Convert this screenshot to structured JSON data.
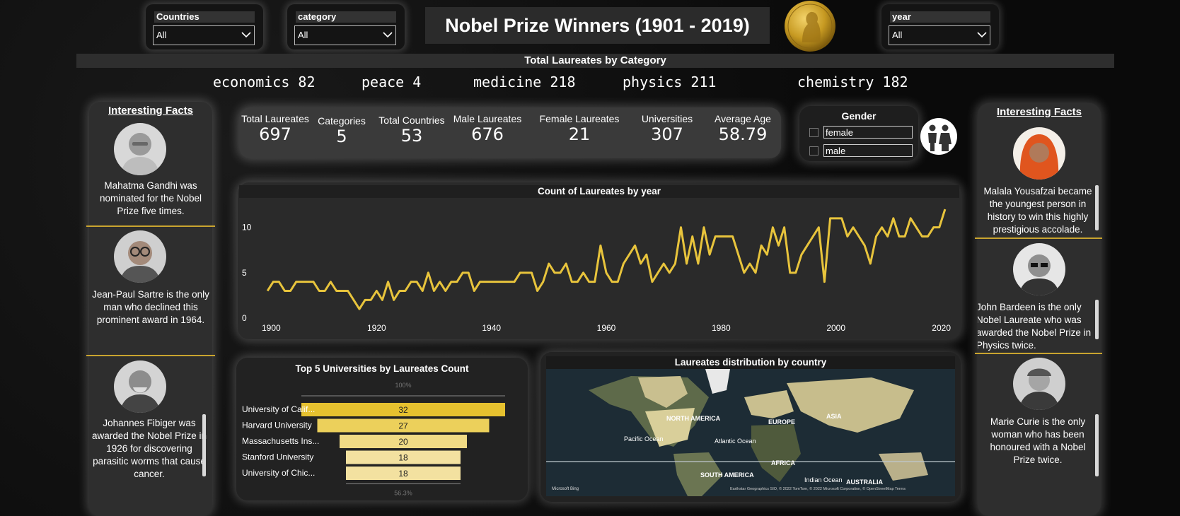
{
  "filters": {
    "countries": {
      "label": "Countries",
      "value": "All"
    },
    "category": {
      "label": "category",
      "value": "All"
    },
    "year": {
      "label": "year",
      "value": "All"
    }
  },
  "header": {
    "title": "Nobel Prize Winners (1901 - 2019)"
  },
  "category_band": {
    "title": "Total Laureates by Category",
    "items": [
      {
        "text": "economics 82"
      },
      {
        "text": "peace 4"
      },
      {
        "text": "medicine 218"
      },
      {
        "text": "physics 211"
      },
      {
        "text": "chemistry 182"
      }
    ]
  },
  "left_facts": {
    "title": "Interesting Facts",
    "facts": [
      {
        "text": "Mahatma Gandhi was nominated for the Nobel Prize five times."
      },
      {
        "text": "Jean-Paul Sartre is the only man who declined this prominent award in 1964."
      },
      {
        "text": "Johannes Fibiger was awarded the Nobel Prize in 1926 for discovering parasitic worms that cause cancer."
      }
    ]
  },
  "right_facts": {
    "title": "Interesting Facts",
    "facts": [
      {
        "text": "Malala Yousafzai became the youngest person in history to win this highly prestigious accolade."
      },
      {
        "text": "John Bardeen is the only Nobel Laureate who was awarded the Nobel Prize in Physics twice."
      },
      {
        "text": "Marie Curie is the only woman who has been honoured with a Nobel Prize twice."
      }
    ]
  },
  "kpis": [
    {
      "title": "Total Laureates",
      "value": "697"
    },
    {
      "title": "Categories",
      "value": "5"
    },
    {
      "title": "Total Countries",
      "value": "53"
    },
    {
      "title": "Male Laureates",
      "value": "676"
    },
    {
      "title": "Female Laureates",
      "value": "21"
    },
    {
      "title": "Universities",
      "value": "307"
    },
    {
      "title": "Average Age",
      "value": "58.79"
    }
  ],
  "gender": {
    "title": "Gender",
    "options": [
      {
        "label": "female"
      },
      {
        "label": "male"
      }
    ]
  },
  "chart_data": [
    {
      "type": "line",
      "title": "Count of Laureates by year",
      "x": [
        1901,
        1902,
        1903,
        1904,
        1905,
        1906,
        1907,
        1908,
        1909,
        1910,
        1911,
        1912,
        1913,
        1914,
        1915,
        1916,
        1917,
        1918,
        1919,
        1920,
        1921,
        1922,
        1923,
        1924,
        1925,
        1926,
        1927,
        1928,
        1929,
        1930,
        1931,
        1932,
        1933,
        1934,
        1935,
        1936,
        1937,
        1938,
        1939,
        1940,
        1941,
        1942,
        1943,
        1944,
        1945,
        1946,
        1947,
        1948,
        1949,
        1950,
        1951,
        1952,
        1953,
        1954,
        1955,
        1956,
        1957,
        1958,
        1959,
        1960,
        1961,
        1962,
        1963,
        1964,
        1965,
        1966,
        1967,
        1968,
        1969,
        1970,
        1971,
        1972,
        1973,
        1974,
        1975,
        1976,
        1977,
        1978,
        1979,
        1980,
        1981,
        1982,
        1983,
        1984,
        1985,
        1986,
        1987,
        1988,
        1989,
        1990,
        1991,
        1992,
        1993,
        1994,
        1995,
        1996,
        1997,
        1998,
        1999,
        2000,
        2001,
        2002,
        2003,
        2004,
        2005,
        2006,
        2007,
        2008,
        2009,
        2010,
        2011,
        2012,
        2013,
        2014,
        2015,
        2016,
        2017,
        2018,
        2019
      ],
      "values": [
        3,
        4,
        4,
        3,
        3,
        4,
        4,
        4,
        4,
        3,
        3,
        4,
        3,
        3,
        3,
        2,
        1,
        2,
        2,
        3,
        2,
        4,
        2,
        3,
        3,
        4,
        4,
        3,
        5,
        3,
        4,
        3,
        4,
        4,
        5,
        5,
        3,
        4,
        4,
        4,
        4,
        4,
        4,
        4,
        5,
        5,
        5,
        3,
        4,
        6,
        5,
        5,
        6,
        4,
        4,
        5,
        4,
        4,
        8,
        5,
        4,
        4,
        6,
        7,
        8,
        6,
        7,
        4,
        5,
        6,
        5,
        6,
        10,
        6,
        9,
        6,
        10,
        7,
        9,
        9,
        9,
        9,
        7,
        5,
        6,
        5,
        8,
        7,
        10,
        8,
        10,
        5,
        5,
        7,
        8,
        9,
        10,
        4,
        11,
        11,
        11,
        9,
        10,
        9,
        8,
        6,
        9,
        10,
        9,
        11,
        9,
        9,
        11,
        10,
        9,
        9,
        10,
        10,
        12
      ],
      "ylim": [
        0,
        12
      ],
      "yticks": [
        0,
        5,
        10
      ],
      "xticks": [
        1900,
        1920,
        1940,
        1960,
        1980,
        2000,
        2020
      ],
      "color": "#e8c43c"
    },
    {
      "type": "bar",
      "title": "Top 5 Universities by Laureates Count",
      "categories": [
        "University of Calif...",
        "Harvard University",
        "Massachusetts Ins...",
        "Stanford University",
        "University of Chic..."
      ],
      "values": [
        32,
        27,
        20,
        18,
        18
      ],
      "top_label": "100%",
      "bottom_label": "56.3%",
      "colors": [
        "#e6c12f",
        "#ecd05b",
        "#f0da85",
        "#f3e1a0",
        "#f3e1a0"
      ]
    }
  ],
  "map": {
    "title": "Laureates distribution by country",
    "labels": [
      "NORTH AMERICA",
      "EUROPE",
      "ASIA",
      "Pacific Ocean",
      "Atlantic Ocean",
      "AFRICA",
      "SOUTH AMERICA",
      "Indian Ocean",
      "AUSTRALIA"
    ],
    "logo": "Microsoft Bing",
    "attribution": "Earthstar Geographics SIO, © 2022 TomTom, © 2022 Microsoft Corporation, © OpenStreetMap  Terms"
  }
}
